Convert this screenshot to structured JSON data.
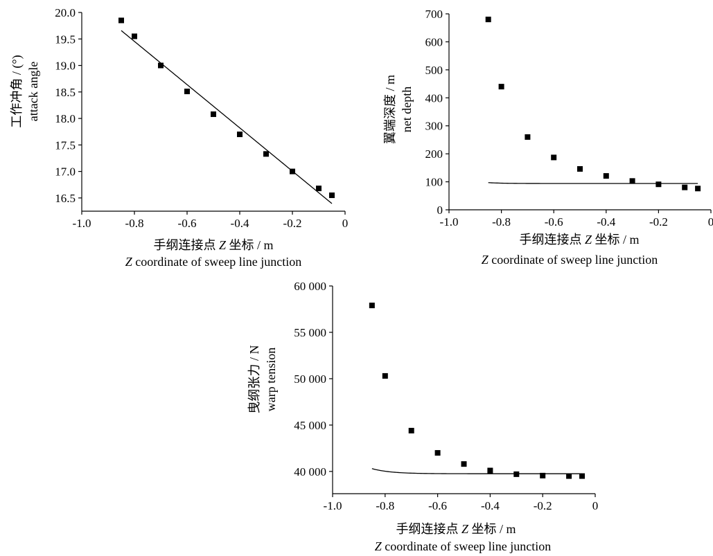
{
  "chart_data": [
    {
      "type": "scatter",
      "panel": "attack-angle",
      "x": [
        -0.85,
        -0.8,
        -0.7,
        -0.6,
        -0.5,
        -0.4,
        -0.3,
        -0.2,
        -0.1,
        -0.05
      ],
      "y": [
        19.85,
        19.55,
        19.0,
        18.51,
        18.08,
        17.7,
        17.33,
        17.0,
        16.68,
        16.55
      ],
      "fit": {
        "model": "linear",
        "slope": -4.08,
        "intercept": 16.19,
        "x_range": [
          -0.85,
          -0.05
        ]
      },
      "xlim": [
        -1.0,
        0
      ],
      "ylim": [
        16.25,
        20.0
      ],
      "xticks": [
        -1.0,
        -0.8,
        -0.6,
        -0.4,
        -0.2,
        0
      ],
      "xtick_labels": [
        "-1.0",
        "-0.8",
        "-0.6",
        "-0.4",
        "-0.2",
        "0"
      ],
      "yticks": [
        16.5,
        17.0,
        17.5,
        18.0,
        18.5,
        19.0,
        19.5,
        20.0
      ],
      "ytick_labels": [
        "16.5",
        "17.0",
        "17.5",
        "18.0",
        "18.5",
        "19.0",
        "19.5",
        "20.0"
      ],
      "ylabel_cn": "工作冲角 / (°)",
      "ylabel_en": "attack angle",
      "xlabel_cn_1": "手纲连接点 ",
      "xlabel_cn_z": "Z",
      "xlabel_cn_2": " 坐标 / m",
      "xlabel_en_z": "Z",
      "xlabel_en": " coordinate of sweep line junction",
      "grid": false
    },
    {
      "type": "scatter",
      "panel": "net-depth",
      "x": [
        -0.85,
        -0.8,
        -0.7,
        -0.6,
        -0.5,
        -0.4,
        -0.3,
        -0.2,
        -0.1,
        -0.05
      ],
      "y": [
        680,
        440,
        260,
        187,
        146,
        121,
        103,
        91,
        80,
        76
      ],
      "fit": {
        "model": "exponential",
        "a": 94,
        "b": 4.5e-07,
        "c": 18.5,
        "x_range": [
          -0.85,
          -0.05
        ]
      },
      "xlim": [
        -1.0,
        0
      ],
      "ylim": [
        0,
        700
      ],
      "xticks": [
        -1.0,
        -0.8,
        -0.6,
        -0.4,
        -0.2,
        0
      ],
      "xtick_labels": [
        "-1.0",
        "-0.8",
        "-0.6",
        "-0.4",
        "-0.2",
        "0"
      ],
      "yticks": [
        0,
        100,
        200,
        300,
        400,
        500,
        600,
        700
      ],
      "ytick_labels": [
        "0",
        "100",
        "200",
        "300",
        "400",
        "500",
        "600",
        "700"
      ],
      "ylabel_cn": "翼端深度 / m",
      "ylabel_en": "net depth",
      "xlabel_cn_1": "手纲连接点 ",
      "xlabel_cn_z": "Z",
      "xlabel_cn_2": " 坐标 / m",
      "xlabel_en_z": "Z",
      "xlabel_en": " coordinate of sweep line junction",
      "grid": false
    },
    {
      "type": "scatter",
      "panel": "warp-tension",
      "x": [
        -0.85,
        -0.8,
        -0.7,
        -0.6,
        -0.5,
        -0.4,
        -0.3,
        -0.2,
        -0.1,
        -0.05
      ],
      "y": [
        57900,
        50300,
        44400,
        42000,
        40800,
        40100,
        39700,
        39550,
        39500,
        39500
      ],
      "fit": {
        "model": "exponential",
        "a": 39750,
        "b": 0.00268,
        "c": 14.4,
        "x_range": [
          -0.85,
          -0.05
        ]
      },
      "xlim": [
        -1.0,
        0
      ],
      "ylim": [
        37600,
        60000
      ],
      "xticks": [
        -1.0,
        -0.8,
        -0.6,
        -0.4,
        -0.2,
        0
      ],
      "xtick_labels": [
        "-1.0",
        "-0.8",
        "-0.6",
        "-0.4",
        "-0.2",
        "0"
      ],
      "yticks": [
        40000,
        45000,
        50000,
        55000,
        60000
      ],
      "ytick_labels": [
        "40 000",
        "45 000",
        "50 000",
        "55 000",
        "60 000"
      ],
      "ylabel_cn": "曳纲张力 / N",
      "ylabel_en": "warp tension",
      "xlabel_cn_1": "手纲连接点 ",
      "xlabel_cn_z": "Z",
      "xlabel_cn_2": " 坐标 / m",
      "xlabel_en_z": "Z",
      "xlabel_en": " coordinate of sweep line junction",
      "grid": false
    }
  ]
}
